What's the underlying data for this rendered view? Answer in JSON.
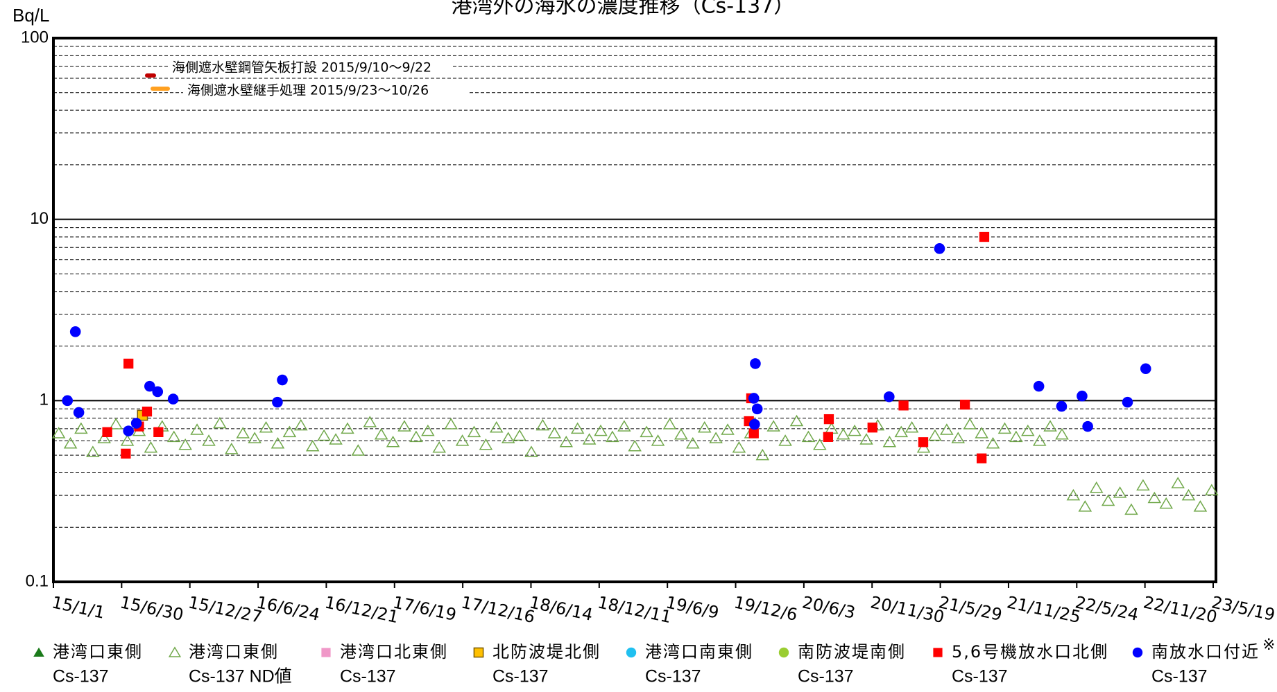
{
  "chart_data": {
    "type": "scatter",
    "title": "港湾外の海水の濃度推移（Cs-137）",
    "y_label": "Bq/L",
    "note": "※",
    "log_y": true,
    "grid": true,
    "ylim": [
      0.1,
      100
    ],
    "yticks": [
      0.1,
      1,
      10,
      100
    ],
    "minor_yticks": [
      0.2,
      0.3,
      0.4,
      0.5,
      0.6,
      0.7,
      0.8,
      0.9,
      2,
      3,
      4,
      5,
      6,
      7,
      8,
      9,
      20,
      30,
      40,
      50,
      60,
      70,
      80,
      90
    ],
    "xlim": [
      "2015-01-01",
      "2023-05-19"
    ],
    "xticks": [
      {
        "value": "2015-01-01",
        "label": "15/1/1"
      },
      {
        "value": "2015-06-30",
        "label": "15/6/30"
      },
      {
        "value": "2015-12-27",
        "label": "15/12/27"
      },
      {
        "value": "2016-06-24",
        "label": "16/6/24"
      },
      {
        "value": "2016-12-21",
        "label": "16/12/21"
      },
      {
        "value": "2017-06-19",
        "label": "17/6/19"
      },
      {
        "value": "2017-12-16",
        "label": "17/12/16"
      },
      {
        "value": "2018-06-14",
        "label": "18/6/14"
      },
      {
        "value": "2018-12-11",
        "label": "18/12/11"
      },
      {
        "value": "2019-06-09",
        "label": "19/6/9"
      },
      {
        "value": "2019-12-06",
        "label": "19/12/6"
      },
      {
        "value": "2020-06-03",
        "label": "20/6/3"
      },
      {
        "value": "2020-11-30",
        "label": "20/11/30"
      },
      {
        "value": "2021-05-29",
        "label": "21/5/29"
      },
      {
        "value": "2021-11-25",
        "label": "21/11/25"
      },
      {
        "value": "2022-05-24",
        "label": "22/5/24"
      },
      {
        "value": "2022-11-20",
        "label": "22/11/20"
      },
      {
        "value": "2023-05-19",
        "label": "23/5/19"
      }
    ],
    "annotations": [
      {
        "text": "海側遮水壁鋼管矢板打設 2015/9/10～9/22",
        "color": "#c00000"
      },
      {
        "text": "海側遮水壁継手処理 2015/9/23～10/26",
        "color": "#ffa020"
      }
    ],
    "series": [
      {
        "name": "港湾口東側",
        "name_line2": "Cs-137",
        "marker": "triangle",
        "color": "#1a7a1a",
        "x": [],
        "values": []
      },
      {
        "name": "港湾口東側",
        "name_line2": "Cs-137 ND値",
        "marker": "triangle-open",
        "color": "#70a84a",
        "x": [
          "2015-01-15",
          "2015-02-15",
          "2015-03-15",
          "2015-04-15",
          "2015-05-15",
          "2015-06-15",
          "2015-07-15",
          "2015-08-15",
          "2015-09-15",
          "2015-10-15",
          "2015-11-15",
          "2015-12-15",
          "2016-01-15",
          "2016-02-15",
          "2016-03-15",
          "2016-04-15",
          "2016-05-15",
          "2016-06-15",
          "2016-07-15",
          "2016-08-15",
          "2016-09-15",
          "2016-10-15",
          "2016-11-15",
          "2016-12-15",
          "2017-01-15",
          "2017-02-15",
          "2017-03-15",
          "2017-04-15",
          "2017-05-15",
          "2017-06-15",
          "2017-07-15",
          "2017-08-15",
          "2017-09-15",
          "2017-10-15",
          "2017-11-15",
          "2017-12-15",
          "2018-01-15",
          "2018-02-15",
          "2018-03-15",
          "2018-04-15",
          "2018-05-15",
          "2018-06-15",
          "2018-07-15",
          "2018-08-15",
          "2018-09-15",
          "2018-10-15",
          "2018-11-15",
          "2018-12-15",
          "2019-01-15",
          "2019-02-15",
          "2019-03-15",
          "2019-04-15",
          "2019-05-15",
          "2019-06-15",
          "2019-07-15",
          "2019-08-15",
          "2019-09-15",
          "2019-10-15",
          "2019-11-15",
          "2019-12-15",
          "2020-01-15",
          "2020-02-15",
          "2020-03-15",
          "2020-04-15",
          "2020-05-15",
          "2020-06-15",
          "2020-07-15",
          "2020-08-15",
          "2020-09-15",
          "2020-10-15",
          "2020-11-15",
          "2020-12-15",
          "2021-01-15",
          "2021-02-15",
          "2021-03-15",
          "2021-04-15",
          "2021-05-15",
          "2021-06-15",
          "2021-07-15",
          "2021-08-15",
          "2021-09-15",
          "2021-10-15",
          "2021-11-15",
          "2021-12-15",
          "2022-01-15",
          "2022-02-15",
          "2022-03-15",
          "2022-04-15",
          "2022-05-15",
          "2022-06-15",
          "2022-07-15",
          "2022-08-15",
          "2022-09-15",
          "2022-10-15",
          "2022-11-15",
          "2022-12-15",
          "2023-01-15",
          "2023-02-15",
          "2023-03-15",
          "2023-04-15",
          "2023-05-15"
        ],
        "values": [
          0.66,
          0.58,
          0.7,
          0.52,
          0.62,
          0.74,
          0.6,
          0.68,
          0.55,
          0.72,
          0.63,
          0.57,
          0.69,
          0.6,
          0.75,
          0.54,
          0.66,
          0.62,
          0.71,
          0.58,
          0.67,
          0.73,
          0.56,
          0.64,
          0.61,
          0.7,
          0.53,
          0.76,
          0.65,
          0.59,
          0.72,
          0.63,
          0.68,
          0.55,
          0.74,
          0.6,
          0.67,
          0.57,
          0.71,
          0.62,
          0.64,
          0.52,
          0.73,
          0.66,
          0.59,
          0.7,
          0.61,
          0.68,
          0.63,
          0.72,
          0.56,
          0.67,
          0.6,
          0.74,
          0.65,
          0.58,
          0.71,
          0.62,
          0.69,
          0.55,
          0.66,
          0.5,
          0.72,
          0.6,
          0.77,
          0.63,
          0.57,
          0.7,
          0.65,
          0.68,
          0.61,
          0.73,
          0.59,
          0.67,
          0.71,
          0.55,
          0.64,
          0.69,
          0.62,
          0.74,
          0.66,
          0.58,
          0.7,
          0.63,
          0.68,
          0.6,
          0.72,
          0.65,
          0.3,
          0.26,
          0.33,
          0.28,
          0.31,
          0.25,
          0.34,
          0.29,
          0.27,
          0.35,
          0.3,
          0.26,
          0.32
        ]
      },
      {
        "name": "港湾口北東側",
        "name_line2": "Cs-137",
        "marker": "square",
        "color": "#f098c8",
        "x": [],
        "values": []
      },
      {
        "name": "北防波堤北側",
        "name_line2": "Cs-137",
        "marker": "square",
        "color": "#ffc000",
        "x": [
          "2015-08-24"
        ],
        "values": [
          0.83
        ]
      },
      {
        "name": "港湾口南東側",
        "name_line2": "Cs-137",
        "marker": "circle",
        "color": "#20c0f0",
        "x": [],
        "values": []
      },
      {
        "name": "南防波堤南側",
        "name_line2": "Cs-137",
        "marker": "circle",
        "color": "#9acd32",
        "x": [],
        "values": []
      },
      {
        "name": "5,6号機放水口北側",
        "name_line2": "Cs-137",
        "marker": "square",
        "color": "#ff0000",
        "x": [
          "2015-05-23",
          "2015-07-11",
          "2015-07-18",
          "2015-08-15",
          "2015-09-05",
          "2015-10-05",
          "2020-01-10",
          "2020-01-16",
          "2020-01-23",
          "2020-08-08",
          "2020-08-06",
          "2020-12-01",
          "2021-02-21",
          "2021-04-14",
          "2021-08-02",
          "2021-09-22",
          "2021-09-15"
        ],
        "values": [
          0.67,
          0.51,
          1.6,
          0.72,
          0.87,
          0.67,
          0.77,
          1.03,
          0.66,
          0.79,
          0.63,
          0.71,
          0.94,
          0.59,
          0.95,
          8.0,
          0.48
        ]
      },
      {
        "name": "南放水口付近",
        "name_line2": "Cs-137",
        "marker": "circle",
        "color": "#0000ff",
        "x": [
          "2015-02-07",
          "2015-02-28",
          "2015-03-09",
          "2015-07-18",
          "2015-08-08",
          "2015-09-12",
          "2015-10-03",
          "2015-11-13",
          "2016-08-14",
          "2016-08-27",
          "2020-01-27",
          "2020-01-23",
          "2020-01-25",
          "2020-02-01",
          "2021-01-14",
          "2021-05-27",
          "2022-02-13",
          "2022-04-14",
          "2022-06-07",
          "2022-06-22",
          "2022-10-05",
          "2022-11-22"
        ],
        "values": [
          1.0,
          2.4,
          0.86,
          0.68,
          0.75,
          1.2,
          1.12,
          1.02,
          0.98,
          1.3,
          1.6,
          1.03,
          0.74,
          0.9,
          1.05,
          6.9,
          1.2,
          0.93,
          1.06,
          0.72,
          0.98,
          1.5
        ]
      }
    ]
  }
}
